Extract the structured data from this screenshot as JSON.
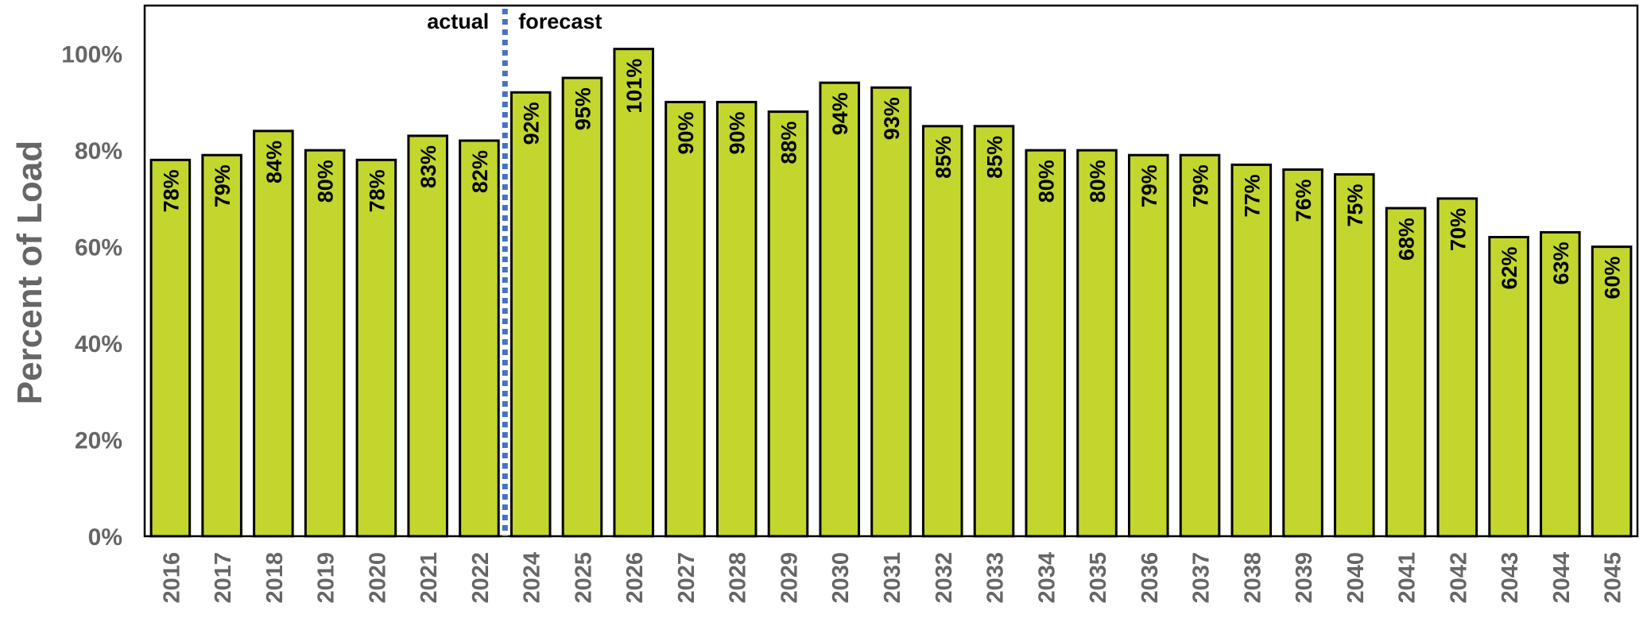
{
  "chart_data": {
    "type": "bar",
    "ylabel": "Percent of Load",
    "ylim": [
      0,
      110
    ],
    "yticks": [
      "0%",
      "20%",
      "40%",
      "60%",
      "80%",
      "100%"
    ],
    "grid": false,
    "legend": "none",
    "categories": [
      "2016",
      "2017",
      "2018",
      "2019",
      "2020",
      "2021",
      "2022",
      "2024",
      "2025",
      "2026",
      "2027",
      "2028",
      "2029",
      "2030",
      "2031",
      "2032",
      "2033",
      "2034",
      "2035",
      "2036",
      "2037",
      "2038",
      "2039",
      "2040",
      "2041",
      "2042",
      "2043",
      "2044",
      "2045"
    ],
    "values": [
      78,
      79,
      84,
      80,
      78,
      83,
      82,
      92,
      95,
      101,
      90,
      90,
      88,
      94,
      93,
      85,
      85,
      80,
      80,
      79,
      79,
      77,
      76,
      75,
      68,
      70,
      62,
      63,
      60
    ],
    "data_labels": [
      "78%",
      "79%",
      "84%",
      "80%",
      "78%",
      "83%",
      "82%",
      "92%",
      "95%",
      "101%",
      "90%",
      "90%",
      "88%",
      "94%",
      "93%",
      "85%",
      "85%",
      "80%",
      "80%",
      "79%",
      "79%",
      "77%",
      "76%",
      "75%",
      "68%",
      "70%",
      "62%",
      "63%",
      "60%"
    ],
    "annotations": {
      "left": "actual",
      "right": "forecast",
      "divider_after": "2022"
    },
    "colors": {
      "bar_fill": "#c3d62e",
      "bar_stroke": "#000000",
      "divider": "#4472c4",
      "axis_text": "#666666"
    }
  }
}
